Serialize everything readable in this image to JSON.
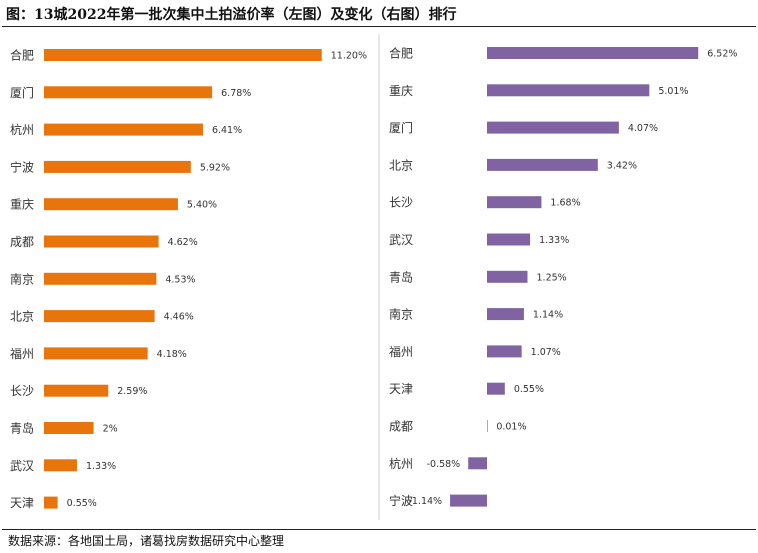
{
  "title": "图：13城2022年第一批次集中土拍溢价率（左图）及变化（右图）排行",
  "source": "数据来源：各地国土局，诸葛找房数据研究中心整理",
  "chart_data": [
    {
      "type": "bar",
      "orientation": "horizontal",
      "title": "",
      "color": "#E8740C",
      "categories": [
        "合肥",
        "厦门",
        "杭州",
        "宁波",
        "重庆",
        "成都",
        "南京",
        "北京",
        "福州",
        "长沙",
        "青岛",
        "武汉",
        "天津"
      ],
      "values": [
        11.2,
        6.78,
        6.41,
        5.92,
        5.4,
        4.62,
        4.53,
        4.46,
        4.18,
        2.59,
        2,
        1.33,
        0.55
      ],
      "labels": [
        "11.20%",
        "6.78%",
        "6.41%",
        "5.92%",
        "5.40%",
        "4.62%",
        "4.53%",
        "4.46%",
        "4.18%",
        "2.59%",
        "2%",
        "1.33%",
        "0.55%"
      ],
      "xlim": [
        0,
        12
      ],
      "grid": false
    },
    {
      "type": "bar",
      "orientation": "horizontal",
      "title": "",
      "color": "#8064A2",
      "categories": [
        "合肥",
        "重庆",
        "厦门",
        "北京",
        "长沙",
        "武汉",
        "青岛",
        "南京",
        "福州",
        "天津",
        "成都",
        "杭州",
        "宁波"
      ],
      "values": [
        6.52,
        5.01,
        4.07,
        3.42,
        1.68,
        1.33,
        1.25,
        1.14,
        1.07,
        0.55,
        0.01,
        -0.58,
        -1.14
      ],
      "labels": [
        "6.52%",
        "5.01%",
        "4.07%",
        "3.42%",
        "1.68%",
        "1.33%",
        "1.25%",
        "1.14%",
        "1.07%",
        "0.55%",
        "0.01%",
        "-0.58%",
        "-1.14%"
      ],
      "xlim": [
        -1.6,
        7
      ],
      "grid": false
    }
  ]
}
